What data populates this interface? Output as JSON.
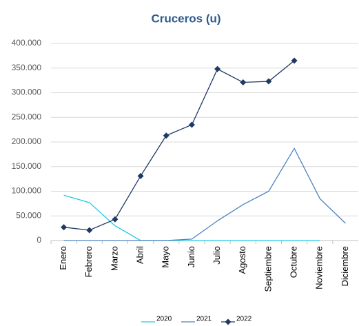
{
  "chart_data": {
    "type": "line",
    "title": "Cruceros (u)",
    "categories": [
      "Enero",
      "Febrero",
      "Marzo",
      "Abril",
      "Mayo",
      "Junio",
      "Julio",
      "Agosto",
      "Septiembre",
      "Octubre",
      "Noviembre",
      "Diciembre"
    ],
    "series": [
      {
        "name": "2020",
        "color": "#1ccbe0",
        "values": [
          92000,
          77000,
          30000,
          0,
          0,
          0,
          0,
          0,
          0,
          0,
          0,
          null
        ]
      },
      {
        "name": "2021",
        "color": "#4f81bd",
        "values": [
          0,
          0,
          0,
          0,
          0,
          3000,
          40000,
          73000,
          100000,
          187000,
          85000,
          35000
        ]
      },
      {
        "name": "2022",
        "color": "#1f3864",
        "marker": "diamond",
        "values": [
          27000,
          21000,
          43000,
          131000,
          213000,
          235000,
          348000,
          321000,
          323000,
          365000,
          null,
          null
        ]
      }
    ],
    "ylim": [
      0,
      400000
    ],
    "yticks": [
      0,
      {
        "value": 50000,
        "label": "50.000"
      },
      {
        "value": 100000,
        "label": "100.000"
      },
      {
        "value": 150000,
        "label": "150.000"
      },
      {
        "value": 200000,
        "label": "200.000"
      },
      {
        "value": 250000,
        "label": "250.000"
      },
      {
        "value": 300000,
        "label": "300.000"
      },
      {
        "value": 350000,
        "label": "350.000"
      },
      {
        "value": 400000,
        "label": "400.000"
      }
    ],
    "grid": true,
    "legend": "bottom"
  }
}
